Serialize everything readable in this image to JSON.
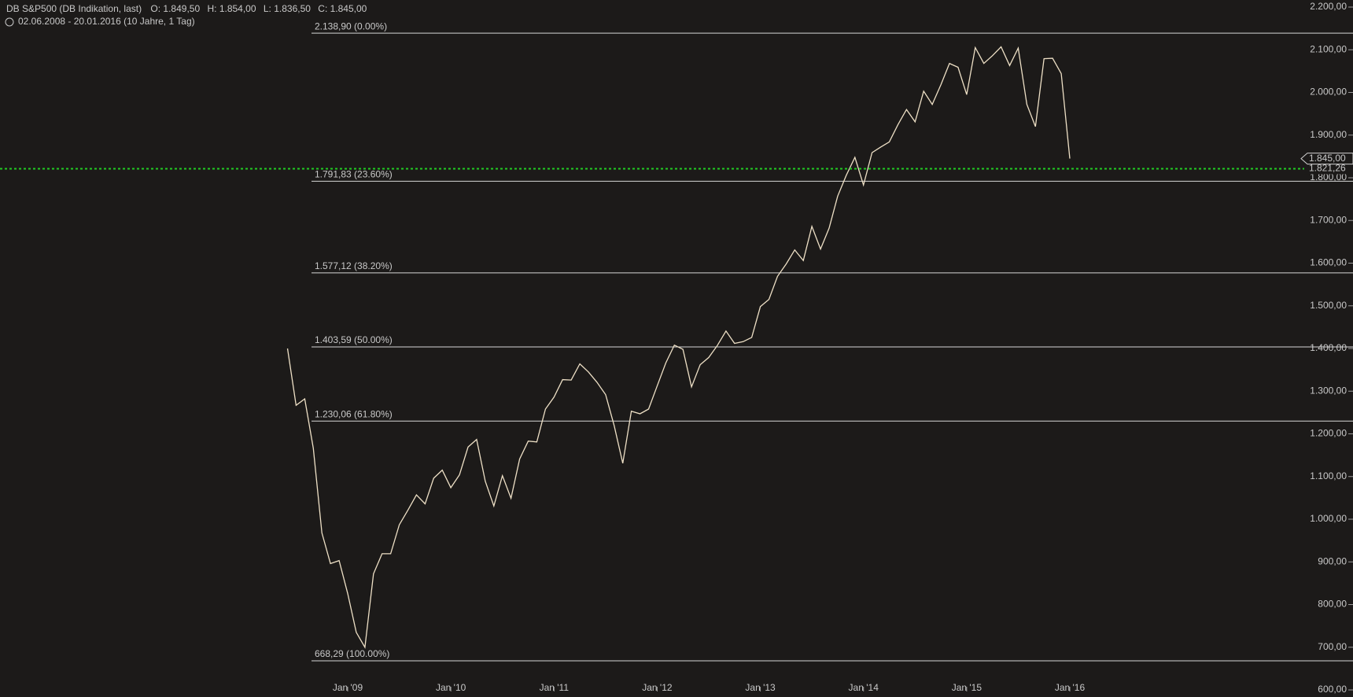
{
  "chart_data": {
    "type": "line",
    "title": "DB S&P500 (DB Indikation, last)",
    "ohlc": [
      "O: 1.849,50",
      "H: 1.854,00",
      "L: 1.836,50",
      "C: 1.845,00"
    ],
    "subtitle": "02.06.2008 - 20.01.2016 (10 Jahre, 1 Tag)",
    "x": [
      "2008-06",
      "2008-07",
      "2008-08",
      "2008-09",
      "2008-10",
      "2008-11",
      "2008-12",
      "2009-01",
      "2009-02",
      "2009-03",
      "2009-04",
      "2009-05",
      "2009-06",
      "2009-07",
      "2009-08",
      "2009-09",
      "2009-10",
      "2009-11",
      "2009-12",
      "2010-01",
      "2010-02",
      "2010-03",
      "2010-04",
      "2010-05",
      "2010-06",
      "2010-07",
      "2010-08",
      "2010-09",
      "2010-10",
      "2010-11",
      "2010-12",
      "2011-01",
      "2011-02",
      "2011-03",
      "2011-04",
      "2011-05",
      "2011-06",
      "2011-07",
      "2011-08",
      "2011-09",
      "2011-10",
      "2011-11",
      "2011-12",
      "2012-01",
      "2012-02",
      "2012-03",
      "2012-04",
      "2012-05",
      "2012-06",
      "2012-07",
      "2012-08",
      "2012-09",
      "2012-10",
      "2012-11",
      "2012-12",
      "2013-01",
      "2013-02",
      "2013-03",
      "2013-04",
      "2013-05",
      "2013-06",
      "2013-07",
      "2013-08",
      "2013-09",
      "2013-10",
      "2013-11",
      "2013-12",
      "2014-01",
      "2014-02",
      "2014-03",
      "2014-04",
      "2014-05",
      "2014-06",
      "2014-07",
      "2014-08",
      "2014-09",
      "2014-10",
      "2014-11",
      "2014-12",
      "2015-01",
      "2015-02",
      "2015-03",
      "2015-04",
      "2015-05",
      "2015-06",
      "2015-07",
      "2015-08",
      "2015-09",
      "2015-10",
      "2015-11",
      "2015-12",
      "2016-01"
    ],
    "series": [
      {
        "name": "DB S&P500",
        "color": "#eee0c6",
        "values": [
          1400,
          1267,
          1282,
          1166,
          968,
          896,
          903,
          826,
          735,
          700,
          872,
          919,
          919,
          987,
          1021,
          1057,
          1036,
          1096,
          1115,
          1074,
          1104,
          1169,
          1187,
          1089,
          1031,
          1102,
          1049,
          1141,
          1183,
          1181,
          1258,
          1286,
          1327,
          1326,
          1364,
          1345,
          1321,
          1292,
          1219,
          1131,
          1253,
          1247,
          1258,
          1312,
          1366,
          1408,
          1398,
          1310,
          1362,
          1379,
          1407,
          1441,
          1412,
          1416,
          1426,
          1498,
          1515,
          1569,
          1598,
          1631,
          1606,
          1686,
          1633,
          1682,
          1757,
          1806,
          1848,
          1783,
          1859,
          1872,
          1884,
          1924,
          1960,
          1931,
          2003,
          1972,
          2018,
          2068,
          2059,
          1995,
          2105,
          2068,
          2086,
          2107,
          2063,
          2104,
          1972,
          1920,
          2079,
          2080,
          2044,
          1845
        ]
      }
    ],
    "xticks": [
      {
        "value": "2009-01",
        "label": "Jan '09"
      },
      {
        "value": "2010-01",
        "label": "Jan '10"
      },
      {
        "value": "2011-01",
        "label": "Jan '11"
      },
      {
        "value": "2012-01",
        "label": "Jan '12"
      },
      {
        "value": "2013-01",
        "label": "Jan '13"
      },
      {
        "value": "2014-01",
        "label": "Jan '14"
      },
      {
        "value": "2015-01",
        "label": "Jan '15"
      },
      {
        "value": "2016-01",
        "label": "Jan '16"
      }
    ],
    "ylim": [
      600,
      2200
    ],
    "yticks": [
      {
        "value": 600,
        "label": "600,00"
      },
      {
        "value": 700,
        "label": "700,00"
      },
      {
        "value": 800,
        "label": "800,00"
      },
      {
        "value": 900,
        "label": "900,00"
      },
      {
        "value": 1000,
        "label": "1.000,00"
      },
      {
        "value": 1100,
        "label": "1.100,00"
      },
      {
        "value": 1200,
        "label": "1.200,00"
      },
      {
        "value": 1300,
        "label": "1.300,00"
      },
      {
        "value": 1400,
        "label": "1.400,00"
      },
      {
        "value": 1500,
        "label": "1.500,00"
      },
      {
        "value": 1600,
        "label": "1.600,00"
      },
      {
        "value": 1700,
        "label": "1.700,00"
      },
      {
        "value": 1800,
        "label": "1.800,00"
      },
      {
        "value": 1900,
        "label": "1.900,00"
      },
      {
        "value": 2000,
        "label": "2.000,00"
      },
      {
        "value": 2100,
        "label": "2.100,00"
      },
      {
        "value": 2200,
        "label": "2.200,00"
      }
    ],
    "fibonacci": [
      {
        "value": 2138.9,
        "label": "2.138,90 (0.00%)"
      },
      {
        "value": 1791.83,
        "label": "1.791,83 (23.60%)"
      },
      {
        "value": 1577.12,
        "label": "1.577,12 (38.20%)"
      },
      {
        "value": 1403.59,
        "label": "1.403,59 (50.00%)"
      },
      {
        "value": 1230.06,
        "label": "1.230,06 (61.80%)"
      },
      {
        "value": 668.29,
        "label": "668,29 (100.00%)"
      }
    ],
    "last_price": {
      "value": 1845,
      "label": "1.845,00"
    },
    "reference_line": {
      "value": 1821.26,
      "label": "1.821,26",
      "color": "#22cc22"
    }
  }
}
